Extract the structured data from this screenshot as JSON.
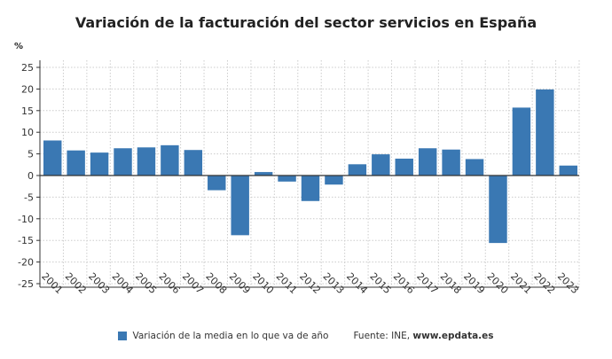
{
  "chart_data": {
    "type": "bar",
    "title": "Variación de la facturación del sector servicios en España",
    "ylabel": "%",
    "xlabel": "",
    "ylim": [
      -25,
      25
    ],
    "yticks": [
      25,
      20,
      15,
      10,
      5,
      0,
      -5,
      -10,
      -15,
      -20,
      -25
    ],
    "grid": true,
    "legend_position": "bottom",
    "categories": [
      "2001",
      "2002",
      "2003",
      "2004",
      "2005",
      "2006",
      "2007",
      "2008",
      "2009",
      "2010",
      "2011",
      "2012",
      "2013",
      "2014",
      "2015",
      "2016",
      "2017",
      "2018",
      "2019",
      "2020",
      "2021",
      "2022",
      "2023"
    ],
    "series": [
      {
        "name": "Variación de la media en lo que va de año",
        "color": "#3a78b3",
        "values": [
          8.1,
          5.8,
          5.3,
          6.3,
          6.5,
          7.0,
          5.9,
          -3.4,
          -13.8,
          0.8,
          -1.4,
          -5.9,
          -2.1,
          2.6,
          4.9,
          3.9,
          6.3,
          6.0,
          3.8,
          -15.6,
          15.7,
          19.9,
          2.3
        ]
      }
    ]
  },
  "source": {
    "label": "Fuente: INE, ",
    "site": "www.epdata.es"
  }
}
